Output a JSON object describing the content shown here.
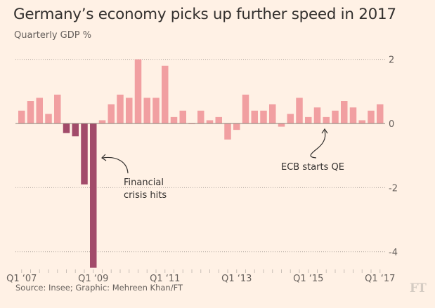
{
  "header": {
    "title": "Germany’s economy picks up further speed in 2017",
    "subtitle": "Quarterly GDP %"
  },
  "footer": {
    "source": "Source: Insee; Graphic: Mehreen Khan/FT",
    "logo": "FT"
  },
  "colors": {
    "background": "#fff1e5",
    "bar_positive": "#f19fa1",
    "bar_crisis": "#a24b6a",
    "zero_line": "#8a7f78",
    "grid": "#b5aca5",
    "tick_text": "#66605c",
    "annotation": "#33302e"
  },
  "chart_data": {
    "type": "bar",
    "title": "Germany’s economy picks up further speed in 2017",
    "subtitle": "Quarterly GDP %",
    "xlabel": "",
    "ylabel": "Quarterly GDP %",
    "ylim": [
      -4.6,
      2.1
    ],
    "yticks": [
      2,
      0,
      -2,
      -4
    ],
    "ytick_labels": [
      "2",
      "0",
      "-2",
      "-4"
    ],
    "y_axis_side": "right",
    "grid": true,
    "categories": [
      "Q1 2007",
      "Q2 2007",
      "Q3 2007",
      "Q4 2007",
      "Q1 2008",
      "Q2 2008",
      "Q3 2008",
      "Q4 2008",
      "Q1 2009",
      "Q2 2009",
      "Q3 2009",
      "Q4 2009",
      "Q1 2010",
      "Q2 2010",
      "Q3 2010",
      "Q4 2010",
      "Q1 2011",
      "Q2 2011",
      "Q3 2011",
      "Q4 2011",
      "Q1 2012",
      "Q2 2012",
      "Q3 2012",
      "Q4 2012",
      "Q1 2013",
      "Q2 2013",
      "Q3 2013",
      "Q4 2013",
      "Q1 2014",
      "Q2 2014",
      "Q3 2014",
      "Q4 2014",
      "Q1 2015",
      "Q2 2015",
      "Q3 2015",
      "Q4 2015",
      "Q1 2016",
      "Q2 2016",
      "Q3 2016",
      "Q4 2016",
      "Q1 2017"
    ],
    "values": [
      0.4,
      0.7,
      0.8,
      0.3,
      0.9,
      -0.3,
      -0.4,
      -1.9,
      -4.5,
      0.1,
      0.6,
      0.9,
      0.8,
      2.0,
      0.8,
      0.8,
      1.8,
      0.2,
      0.4,
      0.0,
      0.4,
      0.1,
      0.2,
      -0.5,
      -0.2,
      0.9,
      0.4,
      0.4,
      0.6,
      -0.1,
      0.3,
      0.8,
      0.2,
      0.5,
      0.2,
      0.4,
      0.7,
      0.5,
      0.1,
      0.4,
      0.6
    ],
    "highlight_range": [
      "Q2 2008",
      "Q1 2009"
    ],
    "xtick_labels": [
      {
        "index": 0,
        "label": "Q1 ‘07"
      },
      {
        "index": 8,
        "label": "Q1 ‘09"
      },
      {
        "index": 16,
        "label": "Q1 ‘11"
      },
      {
        "index": 24,
        "label": "Q1 ‘13"
      },
      {
        "index": 32,
        "label": "Q1 ‘15"
      },
      {
        "index": 40,
        "label": "Q1 ‘17"
      }
    ],
    "annotations": [
      {
        "text_lines": [
          "Financial",
          "crisis hits"
        ],
        "points_to": "Q1 2009"
      },
      {
        "text_lines": [
          "ECB starts QE"
        ],
        "points_to": "Q1 2015"
      }
    ]
  }
}
